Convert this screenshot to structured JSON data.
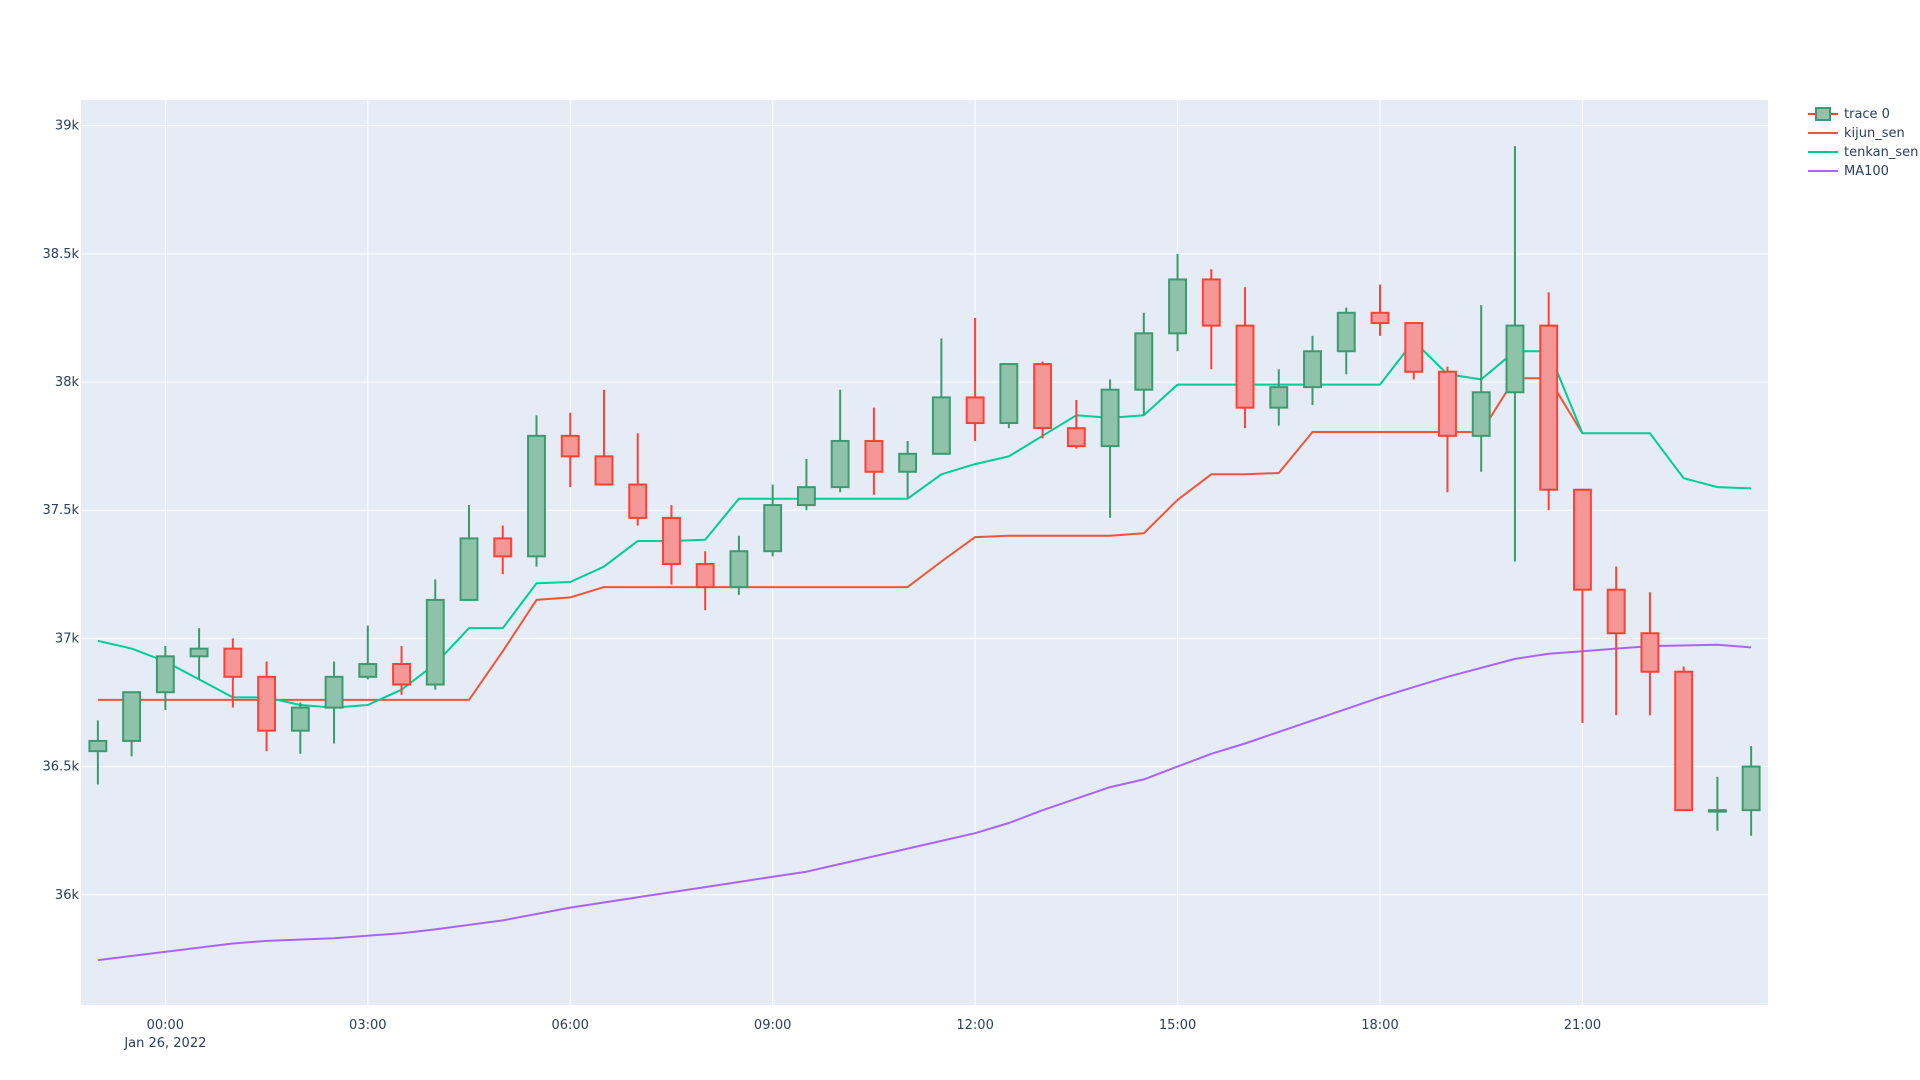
{
  "chart_data": {
    "type": "candlestick",
    "title": "",
    "xlabel": "",
    "ylabel": "",
    "ylim": [
      35570,
      39100
    ],
    "x_range": [
      "2022-01-25 22:45",
      "2022-01-26 23:45"
    ],
    "grid": true,
    "legend_position": "top-right",
    "colors": {
      "plot_bg": "#E5ECF6",
      "grid": "#ffffff",
      "increasing": "#3D9970",
      "increasing_fill": "#8FC3A9",
      "decreasing": "#FF4136",
      "decreasing_fill": "#F59796",
      "kijun_sen": "#EF553B",
      "tenkan_sen": "#00CC96",
      "MA100": "#AB63FA"
    },
    "x_ticks": [
      {
        "value": "2022-01-26 00:00",
        "label": "00:00",
        "sublabel": "Jan 26, 2022"
      },
      {
        "value": "2022-01-26 03:00",
        "label": "03:00"
      },
      {
        "value": "2022-01-26 06:00",
        "label": "06:00"
      },
      {
        "value": "2022-01-26 09:00",
        "label": "09:00"
      },
      {
        "value": "2022-01-26 12:00",
        "label": "12:00"
      },
      {
        "value": "2022-01-26 15:00",
        "label": "15:00"
      },
      {
        "value": "2022-01-26 18:00",
        "label": "18:00"
      },
      {
        "value": "2022-01-26 21:00",
        "label": "21:00"
      }
    ],
    "y_ticks": [
      {
        "value": 36000,
        "label": "36k"
      },
      {
        "value": 36500,
        "label": "36.5k"
      },
      {
        "value": 37000,
        "label": "37k"
      },
      {
        "value": 37500,
        "label": "37.5k"
      },
      {
        "value": 38000,
        "label": "38k"
      },
      {
        "value": 38500,
        "label": "38.5k"
      },
      {
        "value": 39000,
        "label": "39k"
      }
    ],
    "legend": [
      "trace 0",
      "kijun_sen",
      "tenkan_sen",
      "MA100"
    ],
    "candles": {
      "name": "trace 0",
      "x": [
        "2022-01-25 23:00",
        "2022-01-25 23:30",
        "2022-01-26 00:00",
        "2022-01-26 00:30",
        "2022-01-26 01:00",
        "2022-01-26 01:30",
        "2022-01-26 02:00",
        "2022-01-26 02:30",
        "2022-01-26 03:00",
        "2022-01-26 03:30",
        "2022-01-26 04:00",
        "2022-01-26 04:30",
        "2022-01-26 05:00",
        "2022-01-26 05:30",
        "2022-01-26 06:00",
        "2022-01-26 06:30",
        "2022-01-26 07:00",
        "2022-01-26 07:30",
        "2022-01-26 08:00",
        "2022-01-26 08:30",
        "2022-01-26 09:00",
        "2022-01-26 09:30",
        "2022-01-26 10:00",
        "2022-01-26 10:30",
        "2022-01-26 11:00",
        "2022-01-26 11:30",
        "2022-01-26 12:00",
        "2022-01-26 12:30",
        "2022-01-26 13:00",
        "2022-01-26 13:30",
        "2022-01-26 14:00",
        "2022-01-26 14:30",
        "2022-01-26 15:00",
        "2022-01-26 15:30",
        "2022-01-26 16:00",
        "2022-01-26 16:30",
        "2022-01-26 17:00",
        "2022-01-26 17:30",
        "2022-01-26 18:00",
        "2022-01-26 18:30",
        "2022-01-26 19:00",
        "2022-01-26 19:30",
        "2022-01-26 20:00",
        "2022-01-26 20:30",
        "2022-01-26 21:00",
        "2022-01-26 21:30",
        "2022-01-26 22:00",
        "2022-01-26 22:30",
        "2022-01-26 23:00",
        "2022-01-26 23:30"
      ],
      "open": [
        36560,
        36600,
        36790,
        36930,
        36960,
        36850,
        36640,
        36730,
        36850,
        36900,
        36820,
        37150,
        37390,
        37320,
        37790,
        37710,
        37600,
        37470,
        37290,
        37200,
        37340,
        37520,
        37590,
        37770,
        37650,
        37720,
        37940,
        37840,
        38070,
        37820,
        37750,
        37970,
        38190,
        38400,
        38220,
        37900,
        37980,
        38120,
        38270,
        38230,
        38040,
        37790,
        37960,
        38220,
        37580,
        37190,
        37020,
        36870,
        36330,
        36330
      ],
      "high": [
        36680,
        36790,
        36970,
        37040,
        37000,
        36910,
        36750,
        36910,
        37050,
        36970,
        37230,
        37520,
        37440,
        37870,
        37880,
        37970,
        37800,
        37520,
        37340,
        37400,
        37600,
        37700,
        37970,
        37900,
        37770,
        38170,
        38250,
        38070,
        38080,
        37930,
        38010,
        38270,
        38500,
        38440,
        38370,
        38050,
        38180,
        38290,
        38380,
        38230,
        38060,
        38300,
        38920,
        38350,
        37580,
        37280,
        37180,
        36890,
        36460,
        36580
      ],
      "low": [
        36430,
        36540,
        36720,
        36840,
        36730,
        36560,
        36550,
        36590,
        36840,
        36780,
        36800,
        37150,
        37250,
        37280,
        37590,
        37600,
        37440,
        37210,
        37110,
        37170,
        37320,
        37500,
        37570,
        37560,
        37550,
        37720,
        37770,
        37820,
        37780,
        37740,
        37470,
        37870,
        38120,
        38050,
        37820,
        37830,
        37910,
        38030,
        38180,
        38010,
        37570,
        37650,
        37300,
        37500,
        36670,
        36700,
        36700,
        36330,
        36250,
        36230
      ],
      "close": [
        36600,
        36790,
        36930,
        36960,
        36850,
        36640,
        36730,
        36850,
        36900,
        36820,
        37150,
        37390,
        37320,
        37790,
        37710,
        37600,
        37470,
        37290,
        37200,
        37340,
        37520,
        37590,
        37770,
        37650,
        37720,
        37940,
        37840,
        38070,
        37820,
        37750,
        37970,
        38190,
        38400,
        38220,
        37900,
        37980,
        38120,
        38270,
        38230,
        38040,
        37790,
        37960,
        38220,
        37580,
        37190,
        37020,
        36870,
        36330,
        36330,
        36500
      ]
    },
    "series": [
      {
        "name": "kijun_sen",
        "x": [
          "2022-01-25 23:00",
          "2022-01-26 04:30",
          "2022-01-26 05:00",
          "2022-01-26 05:30",
          "2022-01-26 06:00",
          "2022-01-26 06:30",
          "2022-01-26 11:00",
          "2022-01-26 11:30",
          "2022-01-26 12:00",
          "2022-01-26 12:30",
          "2022-01-26 13:30",
          "2022-01-26 14:00",
          "2022-01-26 14:30",
          "2022-01-26 15:00",
          "2022-01-26 15:30",
          "2022-01-26 16:00",
          "2022-01-26 16:30",
          "2022-01-26 17:00",
          "2022-01-26 19:30",
          "2022-01-26 20:00",
          "2022-01-26 20:30",
          "2022-01-26 21:00"
        ],
        "values": [
          36760,
          36760,
          36950,
          37150,
          37160,
          37200,
          37200,
          37300,
          37395,
          37400,
          37400,
          37400,
          37410,
          37540,
          37640,
          37640,
          37645,
          37805,
          37805,
          38015,
          38015,
          37800
        ]
      },
      {
        "name": "tenkan_sen",
        "x": [
          "2022-01-25 23:00",
          "2022-01-25 23:30",
          "2022-01-26 00:00",
          "2022-01-26 00:30",
          "2022-01-26 01:00",
          "2022-01-26 01:30",
          "2022-01-26 02:00",
          "2022-01-26 02:30",
          "2022-01-26 03:00",
          "2022-01-26 03:30",
          "2022-01-26 04:00",
          "2022-01-26 04:30",
          "2022-01-26 05:00",
          "2022-01-26 05:30",
          "2022-01-26 06:00",
          "2022-01-26 06:30",
          "2022-01-26 07:00",
          "2022-01-26 07:30",
          "2022-01-26 08:00",
          "2022-01-26 08:30",
          "2022-01-26 09:00",
          "2022-01-26 09:30",
          "2022-01-26 10:00",
          "2022-01-26 10:30",
          "2022-01-26 11:00",
          "2022-01-26 11:30",
          "2022-01-26 12:00",
          "2022-01-26 12:30",
          "2022-01-26 13:00",
          "2022-01-26 13:30",
          "2022-01-26 14:00",
          "2022-01-26 14:30",
          "2022-01-26 15:00",
          "2022-01-26 15:30",
          "2022-01-26 16:00",
          "2022-01-26 16:30",
          "2022-01-26 17:00",
          "2022-01-26 17:30",
          "2022-01-26 18:00",
          "2022-01-26 18:30",
          "2022-01-26 19:00",
          "2022-01-26 19:30",
          "2022-01-26 20:00",
          "2022-01-26 20:30",
          "2022-01-26 21:00",
          "2022-01-26 21:30",
          "2022-01-26 22:00",
          "2022-01-26 22:30",
          "2022-01-26 23:00",
          "2022-01-26 23:30"
        ],
        "values": [
          36990,
          36960,
          36910,
          36840,
          36770,
          36770,
          36740,
          36730,
          36740,
          36800,
          36900,
          37040,
          37040,
          37215,
          37220,
          37280,
          37380,
          37380,
          37385,
          37545,
          37545,
          37545,
          37545,
          37545,
          37545,
          37640,
          37680,
          37710,
          37790,
          37870,
          37860,
          37870,
          37990,
          37990,
          37990,
          37990,
          37990,
          37990,
          37990,
          38160,
          38030,
          38010,
          38120,
          38120,
          37800,
          37800,
          37800,
          37625,
          37590,
          37585
        ]
      },
      {
        "name": "MA100",
        "x": [
          "2022-01-25 23:00",
          "2022-01-26 01:00",
          "2022-01-26 01:30",
          "2022-01-26 02:30",
          "2022-01-26 03:30",
          "2022-01-26 04:00",
          "2022-01-26 05:00",
          "2022-01-26 06:00",
          "2022-01-26 07:00",
          "2022-01-26 08:00",
          "2022-01-26 09:00",
          "2022-01-26 09:30",
          "2022-01-26 10:00",
          "2022-01-26 11:00",
          "2022-01-26 11:30",
          "2022-01-26 12:00",
          "2022-01-26 12:30",
          "2022-01-26 13:00",
          "2022-01-26 14:00",
          "2022-01-26 14:30",
          "2022-01-26 15:00",
          "2022-01-26 15:30",
          "2022-01-26 16:00",
          "2022-01-26 17:00",
          "2022-01-26 18:00",
          "2022-01-26 18:30",
          "2022-01-26 19:00",
          "2022-01-26 20:00",
          "2022-01-26 20:30",
          "2022-01-26 21:00",
          "2022-01-26 21:30",
          "2022-01-26 22:00",
          "2022-01-26 23:00",
          "2022-01-26 23:30"
        ],
        "values": [
          35745,
          35810,
          35820,
          35830,
          35850,
          35865,
          35900,
          35950,
          35990,
          36030,
          36070,
          36090,
          36120,
          36180,
          36210,
          36240,
          36280,
          36330,
          36420,
          36450,
          36500,
          36550,
          36590,
          36680,
          36770,
          36810,
          36850,
          36920,
          36940,
          36950,
          36960,
          36970,
          36975,
          36965
        ]
      }
    ]
  }
}
